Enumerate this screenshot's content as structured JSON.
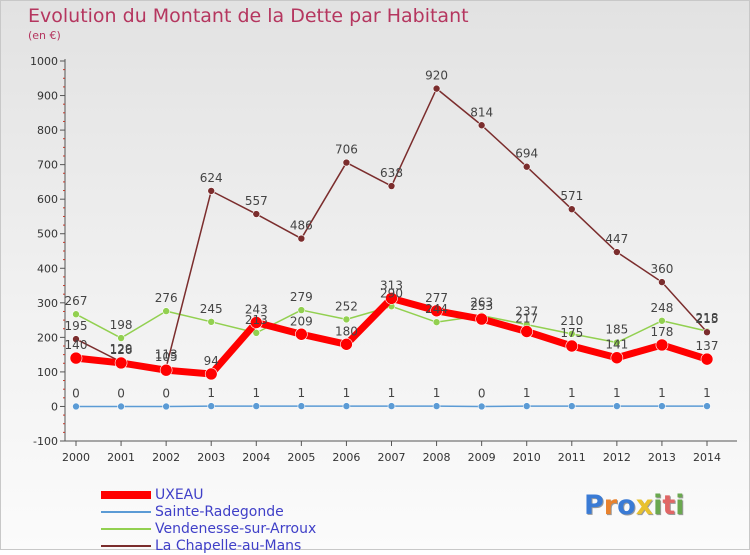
{
  "chart_data": {
    "type": "line",
    "title": "Evolution du Montant de la Dette par Habitant",
    "subtitle": "(en €)",
    "x": [
      "2000",
      "2001",
      "2002",
      "2003",
      "2004",
      "2005",
      "2006",
      "2007",
      "2008",
      "2009",
      "2010",
      "2011",
      "2012",
      "2013",
      "2014"
    ],
    "ylim": [
      -100,
      1000
    ],
    "yticks": [
      -100,
      0,
      100,
      200,
      300,
      400,
      500,
      600,
      700,
      800,
      900,
      1000
    ],
    "grid": false,
    "legend_position": "bottom-left",
    "series": [
      {
        "name": "UXEAU",
        "color": "#ff0000",
        "values": [
          140,
          126,
          105,
          94,
          243,
          209,
          180,
          313,
          277,
          253,
          217,
          175,
          141,
          178,
          137
        ]
      },
      {
        "name": "Sainte-Radegonde",
        "color": "#5b9bd5",
        "values": [
          0,
          0,
          0,
          1,
          1,
          1,
          1,
          1,
          1,
          0,
          1,
          1,
          1,
          1,
          1
        ]
      },
      {
        "name": "Vendenesse-sur-Arroux",
        "color": "#92d050",
        "values": [
          267,
          198,
          276,
          245,
          213,
          279,
          252,
          290,
          244,
          263,
          237,
          210,
          185,
          248,
          218
        ]
      },
      {
        "name": "La Chapelle-au-Mans",
        "color": "#7b2d2d",
        "values": [
          195,
          129,
          113,
          624,
          557,
          486,
          706,
          638,
          920,
          814,
          694,
          571,
          447,
          360,
          215
        ]
      }
    ]
  },
  "logo": {
    "letters": [
      "P",
      "r",
      "o",
      "x",
      "i",
      "t",
      "i"
    ],
    "colors": [
      "#3a7bd5",
      "#e8822e",
      "#3a7bd5",
      "#e8c12e",
      "#6aa84f",
      "#e06666",
      "#6aa84f"
    ]
  }
}
